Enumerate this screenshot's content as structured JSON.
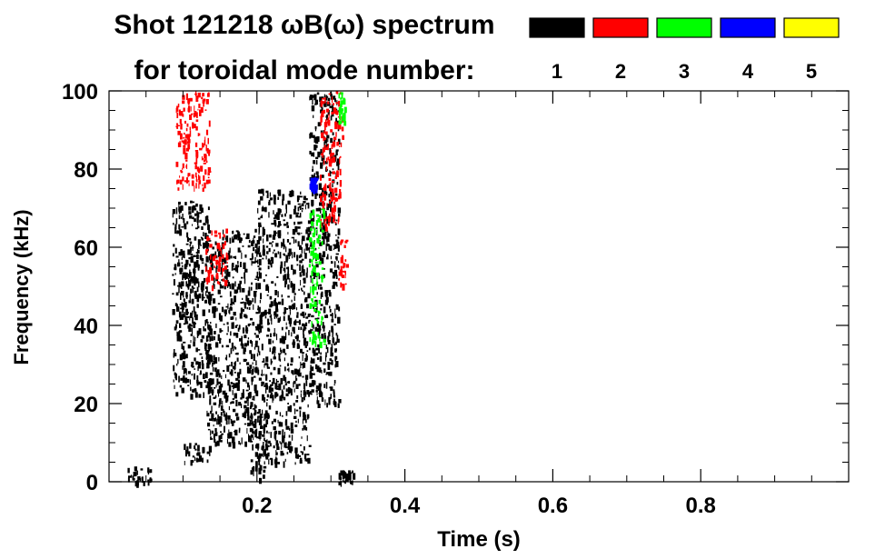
{
  "chart_data": {
    "type": "heatmap",
    "title_line1": "Shot 121218 ωB(ω) spectrum",
    "title_line2": "for toroidal mode number:",
    "xlabel": "Time (s)",
    "ylabel": "Frequency (kHz)",
    "xlim": [
      0.0,
      1.0
    ],
    "ylim": [
      0,
      100
    ],
    "x_ticks": [
      0.2,
      0.4,
      0.6,
      0.8
    ],
    "x_tick_labels": [
      "0.2",
      "0.4",
      "0.6",
      "0.8"
    ],
    "y_ticks": [
      0,
      20,
      40,
      60,
      80,
      100
    ],
    "y_tick_labels": [
      "0",
      "20",
      "40",
      "60",
      "80",
      "100"
    ],
    "legend": {
      "placement": "top-right",
      "entries": [
        {
          "label": "1",
          "color": "#000000"
        },
        {
          "label": "2",
          "color": "#ff0000"
        },
        {
          "label": "3",
          "color": "#00ff00"
        },
        {
          "label": "4",
          "color": "#0000ff"
        },
        {
          "label": "5",
          "color": "#ffff00"
        }
      ]
    },
    "regions": [
      {
        "mode": "1",
        "t": [
          0.085,
          0.135
        ],
        "f": [
          22,
          72
        ]
      },
      {
        "mode": "1",
        "t": [
          0.095,
          0.115
        ],
        "f": [
          40,
          58
        ]
      },
      {
        "mode": "1",
        "t": [
          0.13,
          0.2
        ],
        "f": [
          10,
          65
        ]
      },
      {
        "mode": "1",
        "t": [
          0.19,
          0.21
        ],
        "f": [
          0,
          20
        ]
      },
      {
        "mode": "1",
        "t": [
          0.2,
          0.27
        ],
        "f": [
          5,
          75
        ]
      },
      {
        "mode": "1",
        "t": [
          0.27,
          0.31
        ],
        "f": [
          20,
          100
        ]
      },
      {
        "mode": "1",
        "t": [
          0.025,
          0.055
        ],
        "f": [
          0,
          4
        ]
      },
      {
        "mode": "1",
        "t": [
          0.1,
          0.14
        ],
        "f": [
          5,
          10
        ]
      },
      {
        "mode": "1",
        "t": [
          0.31,
          0.33
        ],
        "f": [
          0,
          3
        ]
      },
      {
        "mode": "2",
        "t": [
          0.09,
          0.135
        ],
        "f": [
          75,
          100
        ]
      },
      {
        "mode": "2",
        "t": [
          0.13,
          0.16
        ],
        "f": [
          50,
          65
        ]
      },
      {
        "mode": "2",
        "t": [
          0.285,
          0.315
        ],
        "f": [
          65,
          100
        ]
      },
      {
        "mode": "2",
        "t": [
          0.31,
          0.32
        ],
        "f": [
          50,
          62
        ]
      },
      {
        "mode": "3",
        "t": [
          0.31,
          0.318
        ],
        "f": [
          92,
          100
        ]
      },
      {
        "mode": "3",
        "t": [
          0.27,
          0.29
        ],
        "f": [
          35,
          70
        ]
      },
      {
        "mode": "4",
        "t": [
          0.27,
          0.28
        ],
        "f": [
          75,
          78
        ]
      }
    ]
  }
}
